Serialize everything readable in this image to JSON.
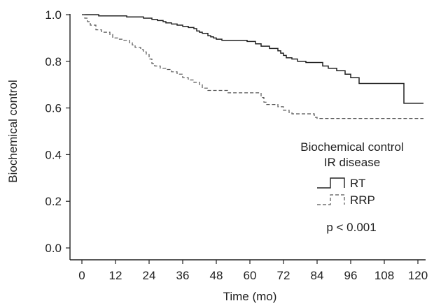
{
  "chart_data": {
    "type": "line",
    "step": true,
    "xlabel": "Time (mo)",
    "ylabel": "Biochemical control",
    "xlim": [
      0,
      120
    ],
    "ylim": [
      0,
      1
    ],
    "xticks": [
      0,
      12,
      24,
      36,
      48,
      60,
      72,
      84,
      96,
      108,
      120
    ],
    "yticks": [
      "0.0",
      "0.2",
      "0.4",
      "0.6",
      "0.8",
      "1.0"
    ],
    "grid": false,
    "legend": {
      "title_line1": "Biochemical control",
      "title_line2": "IR disease",
      "entries": [
        "RT",
        "RRP"
      ],
      "position": "right",
      "annotation": "p < 0.001"
    },
    "series": [
      {
        "name": "RT",
        "style": "solid",
        "color": "#222222",
        "end_x": 122,
        "points": [
          [
            0,
            1.0
          ],
          [
            6,
            0.995
          ],
          [
            16,
            0.99
          ],
          [
            22,
            0.985
          ],
          [
            25,
            0.98
          ],
          [
            27,
            0.975
          ],
          [
            29,
            0.97
          ],
          [
            30,
            0.965
          ],
          [
            32,
            0.96
          ],
          [
            34,
            0.955
          ],
          [
            36,
            0.95
          ],
          [
            38,
            0.945
          ],
          [
            40,
            0.94
          ],
          [
            41,
            0.93
          ],
          [
            42,
            0.925
          ],
          [
            43,
            0.92
          ],
          [
            45,
            0.91
          ],
          [
            46,
            0.905
          ],
          [
            47,
            0.9
          ],
          [
            48,
            0.895
          ],
          [
            50,
            0.89
          ],
          [
            59,
            0.885
          ],
          [
            62,
            0.875
          ],
          [
            64,
            0.865
          ],
          [
            67,
            0.855
          ],
          [
            70,
            0.845
          ],
          [
            71,
            0.835
          ],
          [
            72,
            0.825
          ],
          [
            73,
            0.815
          ],
          [
            75,
            0.81
          ],
          [
            77,
            0.8
          ],
          [
            80,
            0.795
          ],
          [
            86,
            0.78
          ],
          [
            88,
            0.77
          ],
          [
            91,
            0.76
          ],
          [
            94,
            0.745
          ],
          [
            96,
            0.73
          ],
          [
            99,
            0.705
          ],
          [
            115,
            0.62
          ]
        ]
      },
      {
        "name": "RRP",
        "style": "dashed",
        "color": "#555555",
        "end_x": 122,
        "points": [
          [
            0,
            1.0
          ],
          [
            1,
            0.985
          ],
          [
            2,
            0.97
          ],
          [
            3,
            0.955
          ],
          [
            5,
            0.935
          ],
          [
            7,
            0.925
          ],
          [
            10,
            0.915
          ],
          [
            11,
            0.9
          ],
          [
            13,
            0.895
          ],
          [
            15,
            0.89
          ],
          [
            17,
            0.88
          ],
          [
            18,
            0.87
          ],
          [
            19,
            0.86
          ],
          [
            21,
            0.85
          ],
          [
            22,
            0.84
          ],
          [
            23,
            0.83
          ],
          [
            24,
            0.81
          ],
          [
            25,
            0.79
          ],
          [
            26,
            0.78
          ],
          [
            28,
            0.77
          ],
          [
            30,
            0.765
          ],
          [
            32,
            0.755
          ],
          [
            34,
            0.745
          ],
          [
            36,
            0.73
          ],
          [
            38,
            0.72
          ],
          [
            40,
            0.71
          ],
          [
            42,
            0.7
          ],
          [
            43,
            0.685
          ],
          [
            45,
            0.675
          ],
          [
            52,
            0.665
          ],
          [
            64,
            0.645
          ],
          [
            65,
            0.625
          ],
          [
            66,
            0.615
          ],
          [
            70,
            0.605
          ],
          [
            72,
            0.59
          ],
          [
            74,
            0.58
          ],
          [
            75,
            0.575
          ],
          [
            83,
            0.56
          ],
          [
            84,
            0.555
          ]
        ]
      }
    ]
  }
}
